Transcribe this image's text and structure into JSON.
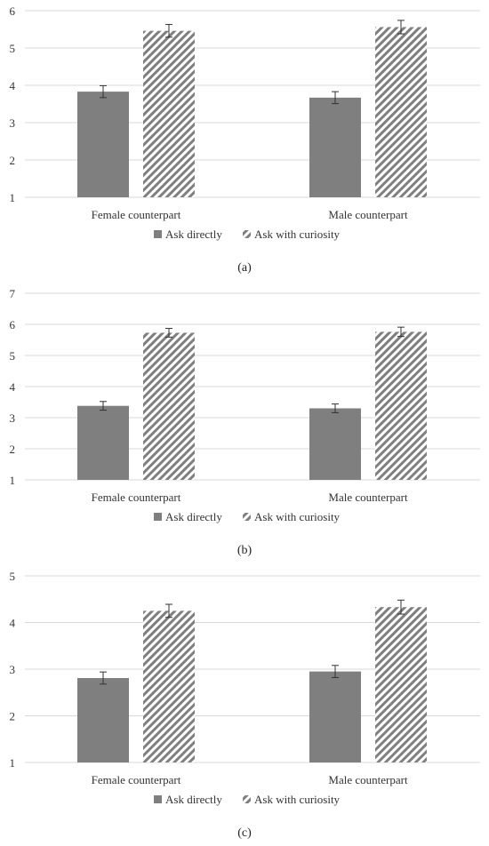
{
  "chart_data": [
    {
      "type": "bar",
      "caption": "(a)",
      "categories": [
        "Female counterpart",
        "Male counterpart"
      ],
      "series": [
        {
          "name": "Ask directly",
          "values": [
            3.83,
            3.67
          ],
          "errors": [
            0.16,
            0.16
          ]
        },
        {
          "name": "Ask with curiosity",
          "values": [
            5.46,
            5.56
          ],
          "errors": [
            0.17,
            0.18
          ]
        }
      ],
      "ylim": [
        1,
        6
      ],
      "yticks": [
        "1",
        "2",
        "3",
        "4",
        "5",
        "6"
      ],
      "grid": true,
      "legend": "bottom"
    },
    {
      "type": "bar",
      "caption": "(b)",
      "categories": [
        "Female counterpart",
        "Male counterpart"
      ],
      "series": [
        {
          "name": "Ask directly",
          "values": [
            3.38,
            3.3
          ],
          "errors": [
            0.14,
            0.14
          ]
        },
        {
          "name": "Ask with curiosity",
          "values": [
            5.73,
            5.76
          ],
          "errors": [
            0.14,
            0.15
          ]
        }
      ],
      "ylim": [
        1,
        7
      ],
      "yticks": [
        "1",
        "2",
        "3",
        "4",
        "5",
        "6",
        "7"
      ],
      "grid": true,
      "legend": "bottom"
    },
    {
      "type": "bar",
      "caption": "(c)",
      "categories": [
        "Female counterpart",
        "Male counterpart"
      ],
      "series": [
        {
          "name": "Ask directly",
          "values": [
            2.81,
            2.95
          ],
          "errors": [
            0.13,
            0.13
          ]
        },
        {
          "name": "Ask with curiosity",
          "values": [
            4.25,
            4.33
          ],
          "errors": [
            0.14,
            0.15
          ]
        }
      ],
      "ylim": [
        1,
        5
      ],
      "yticks": [
        "1",
        "2",
        "3",
        "4",
        "5"
      ],
      "grid": true,
      "legend": "bottom"
    }
  ],
  "colors": {
    "solid_bar": "#7f7f7f",
    "hatch_bar": "#7f7f7f",
    "gridline": "#d9d9d9",
    "axis_text": "#333333"
  }
}
